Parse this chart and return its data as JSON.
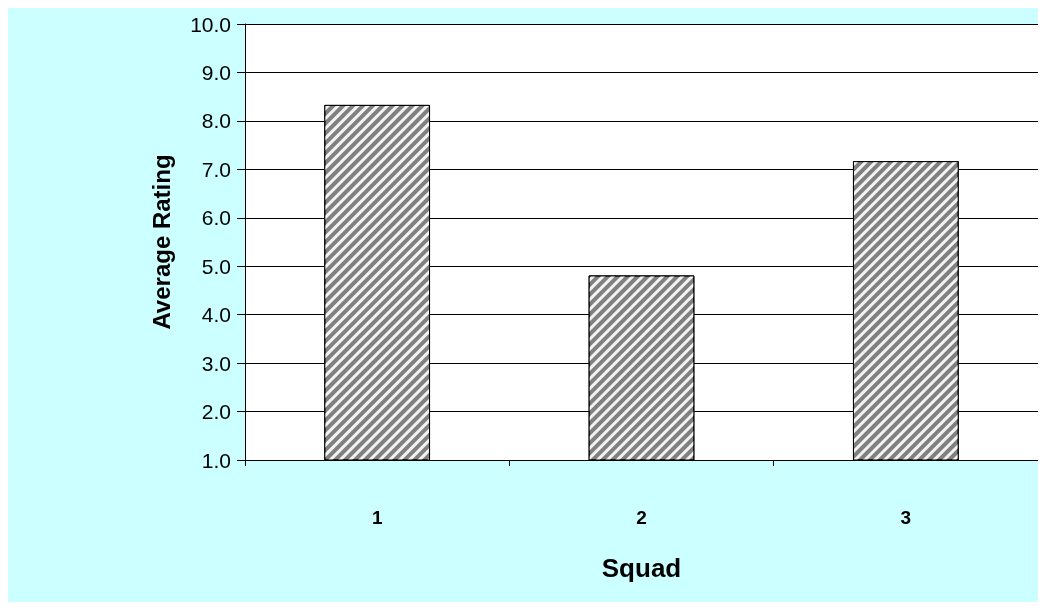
{
  "chart_data": {
    "type": "bar",
    "xlabel": "Squad",
    "ylabel": "Average Rating",
    "categories": [
      "1",
      "2",
      "3"
    ],
    "values": [
      8.33,
      4.81,
      7.17
    ],
    "color": "#808080",
    "ylim": [
      1,
      10
    ],
    "yticks": [
      {
        "value": 1,
        "label": "1.0"
      },
      {
        "value": 2,
        "label": "2.0"
      },
      {
        "value": 3,
        "label": "3.0"
      },
      {
        "value": 4,
        "label": "4.0"
      },
      {
        "value": 5,
        "label": "5.0"
      },
      {
        "value": 6,
        "label": "6.0"
      },
      {
        "value": 7,
        "label": "7.0"
      },
      {
        "value": 8,
        "label": "8.0"
      },
      {
        "value": 9,
        "label": "9.0"
      },
      {
        "value": 10,
        "label": "10.0"
      }
    ],
    "grid": "y"
  }
}
